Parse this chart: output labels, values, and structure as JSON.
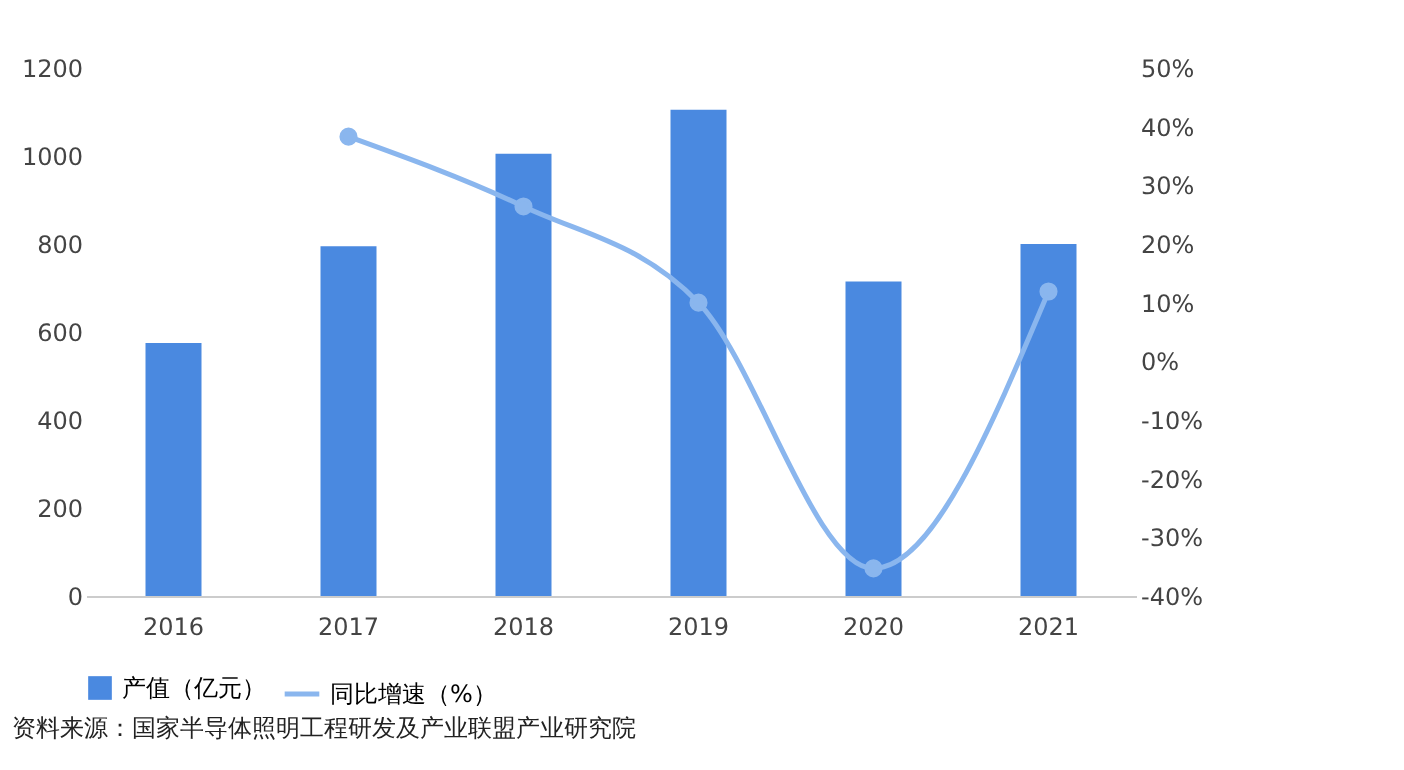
{
  "chart_data": {
    "type": "bar",
    "categories": [
      "2016",
      "2017",
      "2018",
      "2019",
      "2020",
      "2021"
    ],
    "series": [
      {
        "name": "产值（亿元）",
        "color": "#4a89e0",
        "values": [
          575,
          795,
          1005,
          1105,
          715,
          800
        ]
      },
      {
        "name": "同比增速（%）",
        "type": "line",
        "axis": "y2",
        "color": "#8ab6ee",
        "marker": "circle",
        "values": [
          null,
          38.3,
          26.4,
          10,
          -35.3,
          11.9
        ]
      }
    ],
    "ylim": [
      0,
      1200
    ],
    "yticks": [
      0,
      200,
      400,
      600,
      800,
      1000,
      1200
    ],
    "y2lim": [
      -40,
      50
    ],
    "y2ticks": [
      {
        "value": -40,
        "label": "-40%"
      },
      {
        "value": -30,
        "label": "-30%"
      },
      {
        "value": -20,
        "label": "-20%"
      },
      {
        "value": -10,
        "label": "-10%"
      },
      {
        "value": 0,
        "label": "0%"
      },
      {
        "value": 10,
        "label": "10%"
      },
      {
        "value": 20,
        "label": "20%"
      },
      {
        "value": 30,
        "label": "30%"
      },
      {
        "value": 40,
        "label": "40%"
      },
      {
        "value": 50,
        "label": "50%"
      }
    ],
    "grid": false,
    "legend": "bottom",
    "annotations": [
      "资料来源：国家半导体照明工程研发及产业联盟产业研究院"
    ]
  }
}
